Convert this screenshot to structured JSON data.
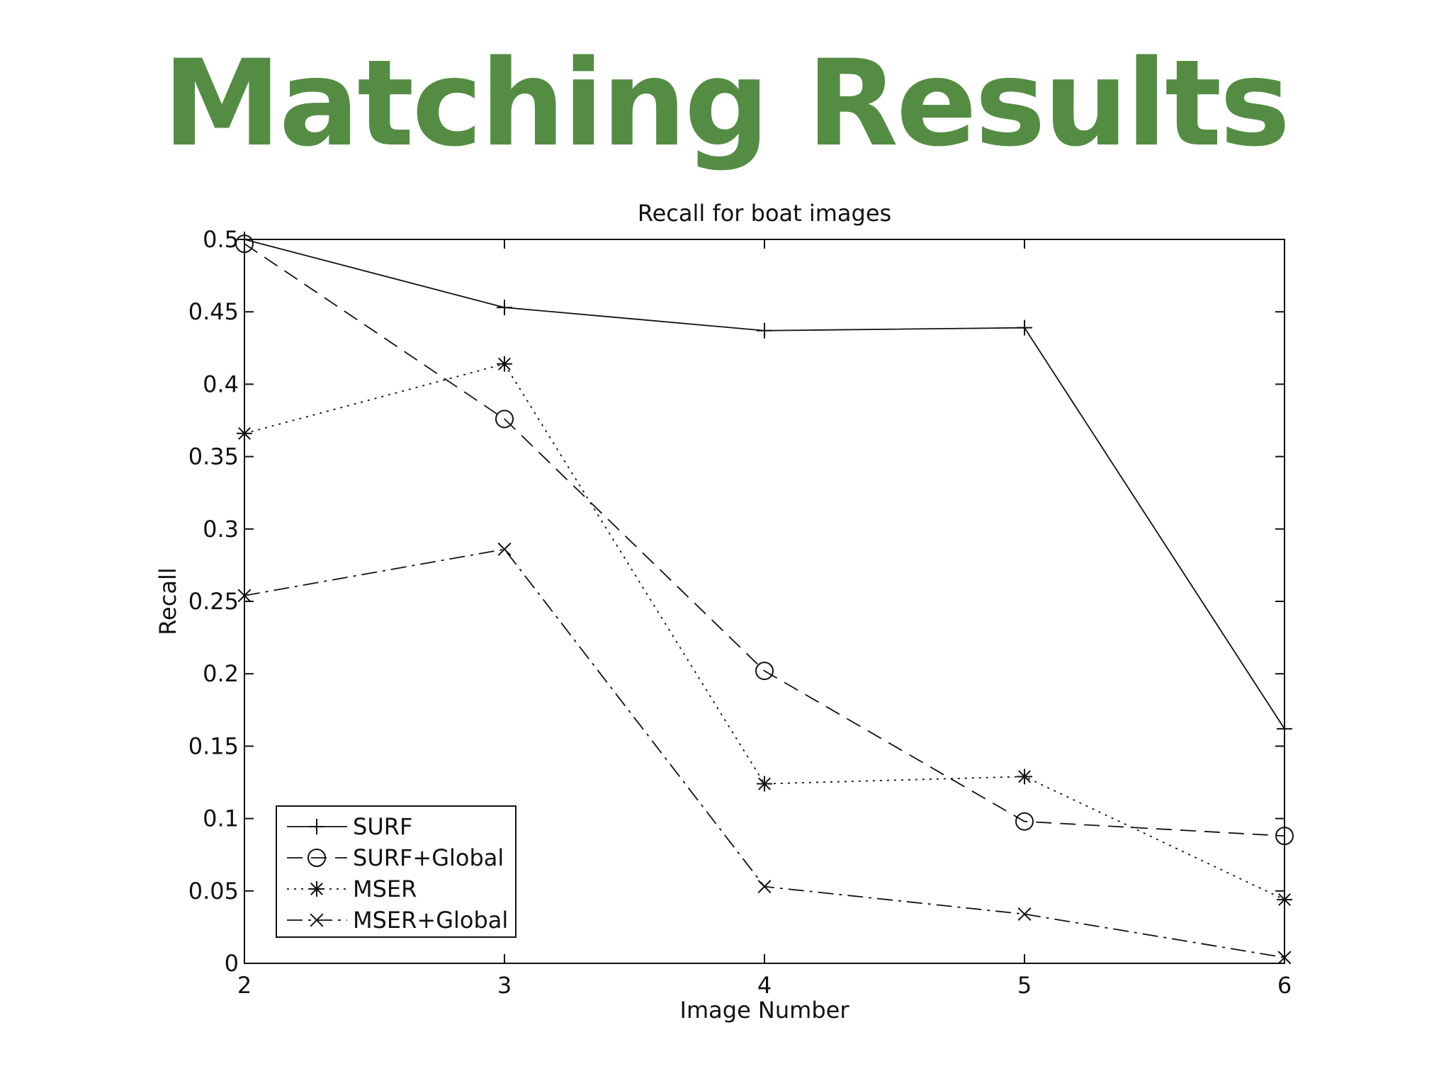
{
  "slide": {
    "title": "Matching Results",
    "title_color": "#548c44"
  },
  "chart_data": {
    "type": "line",
    "title": "Recall for boat images",
    "xlabel": "Image Number",
    "ylabel": "Recall",
    "x": [
      2,
      3,
      4,
      5,
      6
    ],
    "xlim": [
      2,
      6
    ],
    "ylim": [
      0,
      0.5
    ],
    "xticks": [
      "2",
      "3",
      "4",
      "5",
      "6"
    ],
    "yticks": [
      "0",
      "0.05",
      "0.1",
      "0.15",
      "0.2",
      "0.25",
      "0.3",
      "0.35",
      "0.4",
      "0.45",
      "0.5"
    ],
    "grid": false,
    "legend_position": "bottom-left",
    "series": [
      {
        "name": "SURF",
        "values": [
          0.5,
          0.453,
          0.437,
          0.439,
          0.162
        ],
        "marker": "plus",
        "line_style": "solid"
      },
      {
        "name": "SURF+Global",
        "values": [
          0.497,
          0.376,
          0.202,
          0.098,
          0.088
        ],
        "marker": "circle",
        "line_style": "dashed"
      },
      {
        "name": "MSER",
        "values": [
          0.366,
          0.414,
          0.124,
          0.129,
          0.044
        ],
        "marker": "star",
        "line_style": "dotted"
      },
      {
        "name": "MSER+Global",
        "values": [
          0.254,
          0.286,
          0.053,
          0.034,
          0.004
        ],
        "marker": "x",
        "line_style": "dash-dot"
      }
    ]
  }
}
